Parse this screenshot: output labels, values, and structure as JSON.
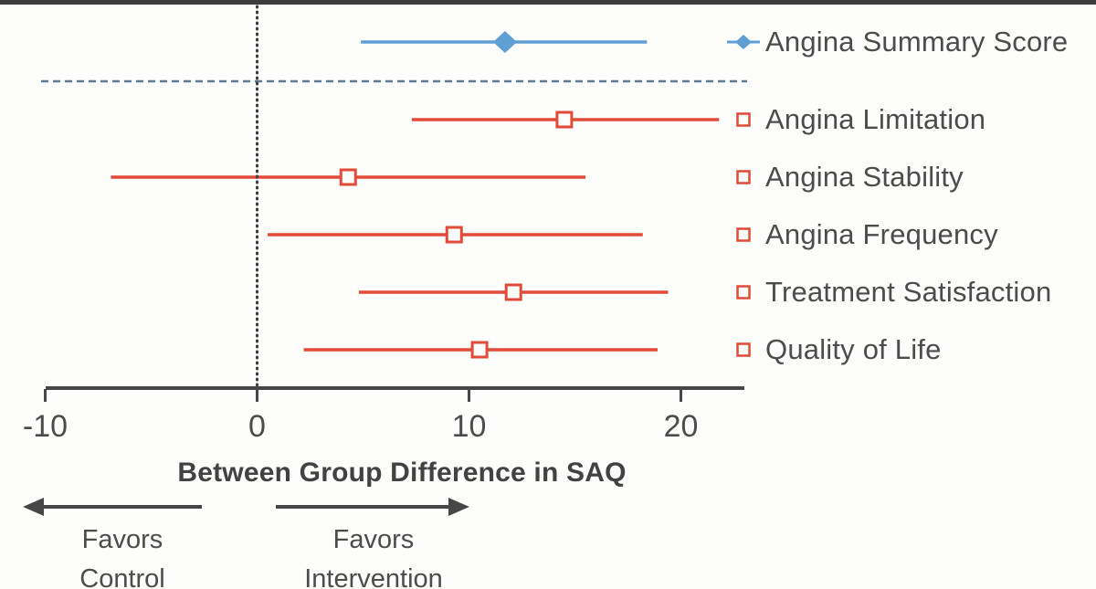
{
  "chart_data": {
    "type": "forest",
    "title": "",
    "xlabel": "Between Group Difference in SAQ",
    "x_ticks": [
      -10,
      0,
      10,
      20
    ],
    "xlim": [
      -10,
      23
    ],
    "reference_line_x": 0,
    "grid": false,
    "legend_position": "right",
    "direction_labels": {
      "left": [
        "Favors",
        "Control"
      ],
      "right": [
        "Favors",
        "Intervention"
      ]
    },
    "series": [
      {
        "label": "Angina Summary Score",
        "estimate": 11.7,
        "ci_low": 4.9,
        "ci_high": 18.4,
        "marker": "diamond",
        "color": "#5f9fd4",
        "group": "summary"
      },
      {
        "label": "Angina Limitation",
        "estimate": 14.5,
        "ci_low": 7.3,
        "ci_high": 21.8,
        "marker": "open-square",
        "color": "#e14b38",
        "group": "subscale"
      },
      {
        "label": "Angina Stability",
        "estimate": 4.3,
        "ci_low": -6.9,
        "ci_high": 15.5,
        "marker": "open-square",
        "color": "#e14b38",
        "group": "subscale"
      },
      {
        "label": "Angina Frequency",
        "estimate": 9.3,
        "ci_low": 0.5,
        "ci_high": 18.2,
        "marker": "open-square",
        "color": "#e14b38",
        "group": "subscale"
      },
      {
        "label": "Treatment Satisfaction",
        "estimate": 12.1,
        "ci_low": 4.8,
        "ci_high": 19.4,
        "marker": "open-square",
        "color": "#e14b38",
        "group": "subscale"
      },
      {
        "label": "Quality of Life",
        "estimate": 10.5,
        "ci_low": 2.2,
        "ci_high": 18.9,
        "marker": "open-square",
        "color": "#e14b38",
        "group": "subscale"
      }
    ],
    "separator_after_series": "Angina Summary Score"
  },
  "colors": {
    "summary": "#5f9fd4",
    "subscale": "#e14b38",
    "axis": "#474747",
    "text": "#4c4c4c",
    "separator": "#5e7993",
    "reference_line": "#3c3c3c",
    "top_border": "#3d3d3d",
    "background": "#fdfdfc"
  }
}
